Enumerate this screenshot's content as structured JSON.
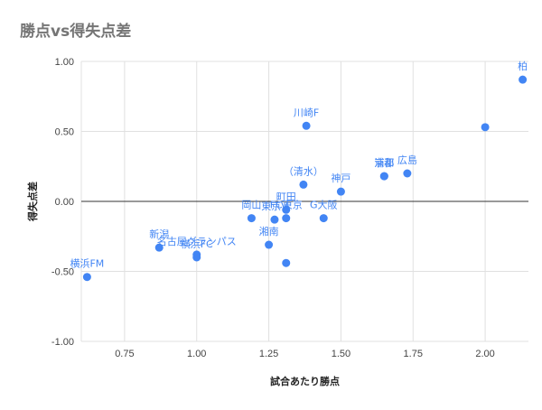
{
  "chart_data": {
    "type": "scatter",
    "title": "勝点vs得失点差",
    "xlabel": "試合あたり勝点",
    "ylabel": "得失点差",
    "xlim": [
      0.6,
      2.15
    ],
    "ylim": [
      -1.0,
      1.0
    ],
    "x_ticks": [
      "0.75",
      "1.00",
      "1.25",
      "1.50",
      "1.75",
      "2.00"
    ],
    "y_ticks": [
      "-1.00",
      "-0.50",
      "0.00",
      "0.50",
      "1.00"
    ],
    "grid": true,
    "legend": "none",
    "point_color": "#4285f4",
    "label_color": "#4285f4",
    "points": [
      {
        "label": "柏",
        "x": 2.13,
        "y": 0.87
      },
      {
        "label": "",
        "x": 2.0,
        "y": 0.53
      },
      {
        "label": "川崎F",
        "x": 1.38,
        "y": 0.54
      },
      {
        "label": "浦和",
        "x": 1.65,
        "y": 0.18
      },
      {
        "label": "広島",
        "x": 1.73,
        "y": 0.2
      },
      {
        "label": "京都",
        "x": 1.65,
        "y": 0.18
      },
      {
        "label": "神戸",
        "x": 1.5,
        "y": 0.07
      },
      {
        "label": "（清水）",
        "x": 1.37,
        "y": 0.12
      },
      {
        "label": "町田",
        "x": 1.31,
        "y": -0.06
      },
      {
        "label": "FC東京",
        "x": 1.31,
        "y": -0.12
      },
      {
        "label": "G大阪",
        "x": 1.44,
        "y": -0.12
      },
      {
        "label": "岡山",
        "x": 1.19,
        "y": -0.12
      },
      {
        "label": "東京V",
        "x": 1.27,
        "y": -0.13
      },
      {
        "label": "湘南",
        "x": 1.25,
        "y": -0.31
      },
      {
        "label": "",
        "x": 1.31,
        "y": -0.44
      },
      {
        "label": "新潟",
        "x": 0.87,
        "y": -0.33
      },
      {
        "label": "名古屋グランパス",
        "x": 1.0,
        "y": -0.38
      },
      {
        "label": "横浜FC",
        "x": 1.0,
        "y": -0.4
      },
      {
        "label": "横浜FM",
        "x": 0.62,
        "y": -0.54
      }
    ]
  }
}
